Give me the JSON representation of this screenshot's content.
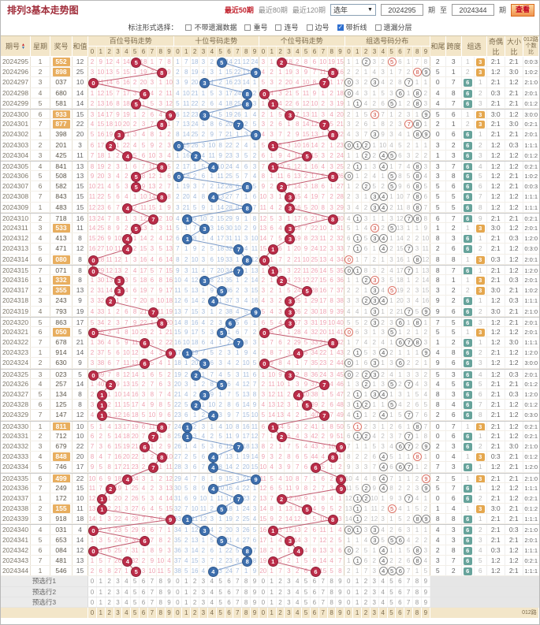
{
  "title": "排列3基本走势图",
  "toolbar": {
    "recent50": "最近50期",
    "recent80": "最近80期",
    "recent120": "最近120期",
    "year_select": "选年",
    "from_value": "2024295",
    "unit_label": "期",
    "to_label": "至",
    "to_value": "2024344",
    "unit_label2": "期",
    "search_button": "查看"
  },
  "filter": {
    "label": "标注形式选择：",
    "options": [
      {
        "label": "不带遗漏数据",
        "checked": false
      },
      {
        "label": "重号",
        "checked": false
      },
      {
        "label": "连号",
        "checked": false
      },
      {
        "label": "边号",
        "checked": false
      },
      {
        "label": "带折线",
        "checked": true
      },
      {
        "label": "遗漏分层",
        "checked": false
      }
    ]
  },
  "table": {
    "left_headers": [
      "期号",
      "星期",
      "奖号",
      "和值"
    ],
    "group_headers": [
      "百位号码走势",
      "十位号码走势",
      "个位号码走势",
      "组选号码分布"
    ],
    "digit_labels": [
      "0",
      "1",
      "2",
      "3",
      "4",
      "5",
      "6",
      "7",
      "8",
      "9"
    ],
    "stat_headers": [
      "和尾",
      "跨度",
      "组选",
      "奇偶比",
      "大小比",
      "012路个数比"
    ],
    "seed_miss": {
      "hundreds": [
        2,
        9,
        12,
        4,
        14,
        0,
        18,
        1,
        7,
        8
      ],
      "tens": [
        1,
        7,
        18,
        3,
        2,
        0,
        14,
        21,
        12,
        24
      ],
      "units": [
        3,
        1,
        0,
        18,
        2,
        8,
        6,
        10,
        19,
        15
      ],
      "group": [
        1,
        1,
        0,
        3,
        2,
        0,
        6,
        1,
        7,
        8
      ]
    },
    "rows": [
      {
        "issue": "2024295",
        "week": "1",
        "num": "552",
        "sum": 12
      },
      {
        "issue": "2024296",
        "week": "2",
        "num": "898",
        "sum": 25
      },
      {
        "issue": "2024297",
        "week": "3",
        "num": "037",
        "sum": 10
      },
      {
        "issue": "2024298",
        "week": "4",
        "num": "680",
        "sum": 14
      },
      {
        "issue": "2024299",
        "week": "5",
        "num": "581",
        "sum": 14
      },
      {
        "issue": "2024300",
        "week": "6",
        "num": "933",
        "sum": 15
      },
      {
        "issue": "2024301",
        "week": "7",
        "num": "877",
        "sum": 22
      },
      {
        "issue": "2024302",
        "week": "1",
        "num": "398",
        "sum": 20
      },
      {
        "issue": "2024303",
        "week": "2",
        "num": "201",
        "sum": 3
      },
      {
        "issue": "2024304",
        "week": "3",
        "num": "425",
        "sum": 11
      },
      {
        "issue": "2024305",
        "week": "4",
        "num": "841",
        "sum": 13
      },
      {
        "issue": "2024306",
        "week": "5",
        "num": "508",
        "sum": 13
      },
      {
        "issue": "2024307",
        "week": "6",
        "num": "582",
        "sum": 15
      },
      {
        "issue": "2024308",
        "week": "7",
        "num": "843",
        "sum": 15
      },
      {
        "issue": "2024309",
        "week": "1",
        "num": "483",
        "sum": 15
      },
      {
        "issue": "2024310",
        "week": "2",
        "num": "718",
        "sum": 16
      },
      {
        "issue": "2024311",
        "week": "3",
        "num": "533",
        "sum": 11
      },
      {
        "issue": "2024312",
        "week": "4",
        "num": "413",
        "sum": 8
      },
      {
        "issue": "2024313",
        "week": "5",
        "num": "471",
        "sum": 12
      },
      {
        "issue": "2024314",
        "week": "6",
        "num": "080",
        "sum": 8
      },
      {
        "issue": "2024315",
        "week": "7",
        "num": "071",
        "sum": 8
      },
      {
        "issue": "2024316",
        "week": "1",
        "num": "332",
        "sum": 8
      },
      {
        "issue": "2024317",
        "week": "2",
        "num": "355",
        "sum": 13
      },
      {
        "issue": "2024318",
        "week": "3",
        "num": "243",
        "sum": 9
      },
      {
        "issue": "2024319",
        "week": "4",
        "num": "793",
        "sum": 19
      },
      {
        "issue": "2024320",
        "week": "5",
        "num": "863",
        "sum": 17
      },
      {
        "issue": "2024321",
        "week": "6",
        "num": "050",
        "sum": 5
      },
      {
        "issue": "2024322",
        "week": "7",
        "num": "678",
        "sum": 21
      },
      {
        "issue": "2024323",
        "week": "1",
        "num": "914",
        "sum": 14
      },
      {
        "issue": "2024324",
        "week": "2",
        "num": "630",
        "sum": 9
      },
      {
        "issue": "2024325",
        "week": "3",
        "num": "023",
        "sum": 5
      },
      {
        "issue": "2024326",
        "week": "4",
        "num": "257",
        "sum": 14
      },
      {
        "issue": "2024327",
        "week": "5",
        "num": "134",
        "sum": 8
      },
      {
        "issue": "2024328",
        "week": "6",
        "num": "125",
        "sum": 8
      },
      {
        "issue": "2024329",
        "week": "7",
        "num": "147",
        "sum": 12
      },
      {
        "issue": "2024330",
        "week": "1",
        "num": "811",
        "sum": 10
      },
      {
        "issue": "2024331",
        "week": "2",
        "num": "712",
        "sum": 10
      },
      {
        "issue": "2024332",
        "week": "3",
        "num": "679",
        "sum": 22
      },
      {
        "issue": "2024333",
        "week": "4",
        "num": "848",
        "sum": 20
      },
      {
        "issue": "2024334",
        "week": "5",
        "num": "746",
        "sum": 17
      },
      {
        "issue": "2024335",
        "week": "6",
        "num": "499",
        "sum": 22
      },
      {
        "issue": "2024336",
        "week": "7",
        "num": "249",
        "sum": 15
      },
      {
        "issue": "2024337",
        "week": "1",
        "num": "172",
        "sum": 10
      },
      {
        "issue": "2024338",
        "week": "2",
        "num": "155",
        "sum": 11
      },
      {
        "issue": "2024339",
        "week": "3",
        "num": "918",
        "sum": 18
      },
      {
        "issue": "2024340",
        "week": "4",
        "num": "031",
        "sum": 4
      },
      {
        "issue": "2024341",
        "week": "5",
        "num": "653",
        "sum": 14
      },
      {
        "issue": "2024342",
        "week": "6",
        "num": "084",
        "sum": 12
      },
      {
        "issue": "2024343",
        "week": "7",
        "num": "481",
        "sum": 13
      },
      {
        "issue": "2024344",
        "week": "1",
        "num": "546",
        "sum": 15
      }
    ]
  },
  "footer": {
    "preselect_rows": [
      "预选行1",
      "预选行2",
      "预选行3"
    ]
  },
  "colors": {
    "title_red": "#a02c39",
    "hot_link_red": "#c1202c",
    "header_tan": "#f3e6c9",
    "ball_red": "#bb2d49",
    "ball_blue": "#3e6fad",
    "line_red": "#c45a70",
    "line_blue": "#7b9ccb",
    "miss_pink": "#efa3b2",
    "miss_blue": "#a7bddc",
    "miss_gray": "#bdbdbd",
    "ring_red": "#dd7468",
    "ring_dark": "#8a8a8a",
    "badge_orange": "#e5a74e",
    "badge_teal": "#66a39b",
    "num_badge_orange": "#e8ae5f",
    "checkbox_blue": "#2e6fd0"
  }
}
